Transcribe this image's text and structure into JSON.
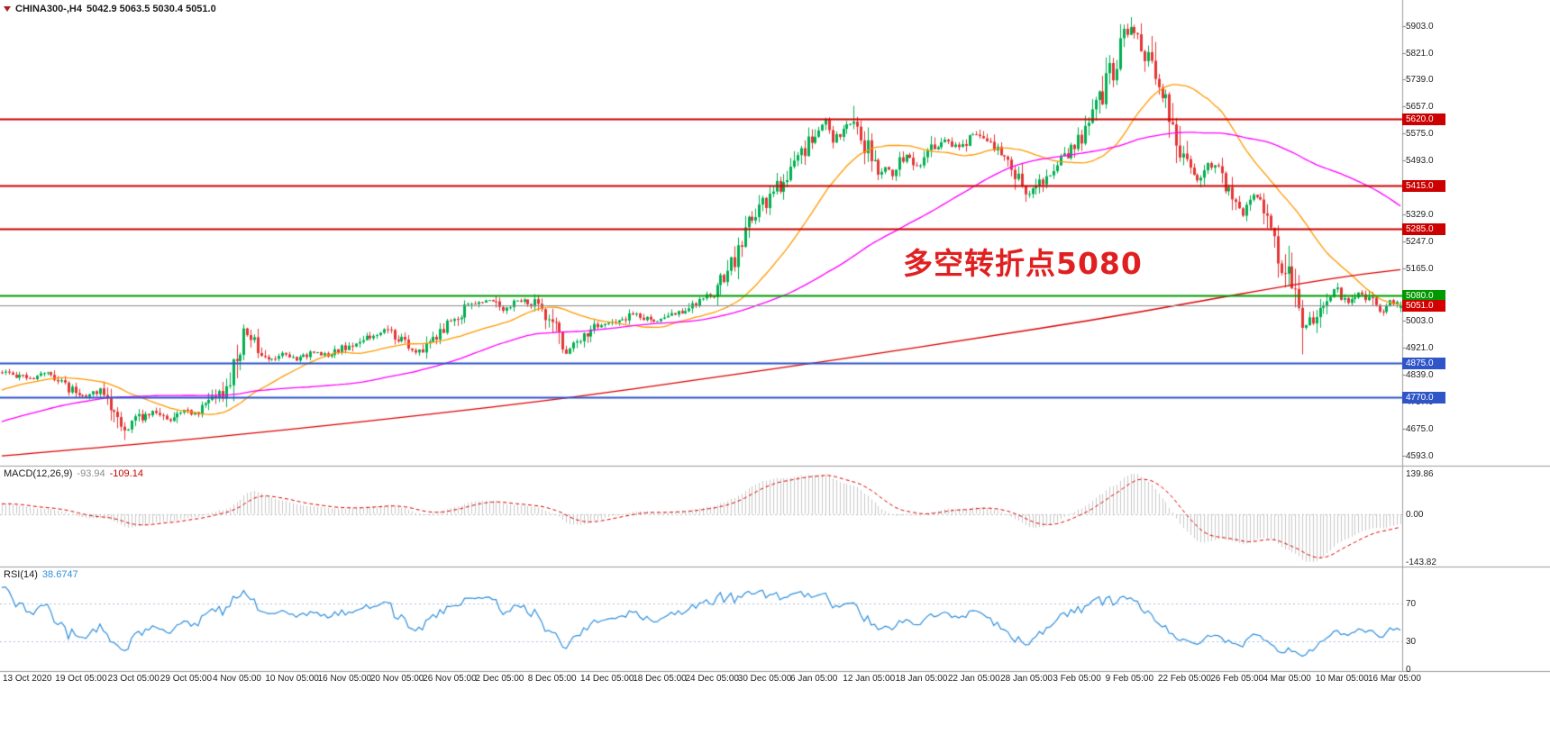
{
  "window": {
    "background": "#ffffff"
  },
  "chart_data": {
    "type": "candlestick",
    "symbol": "CHINA300-",
    "timeframe": "H4",
    "title": {
      "symbol_period": "CHINA300-,H4",
      "ohlc_text": "5042.9 5063.5 5030.4 5051.0"
    },
    "last_bar": {
      "open": 5042.9,
      "high": 5063.5,
      "low": 5030.4,
      "close": 5051.0
    },
    "price_axis": {
      "top_price": 5960,
      "bottom_price": 4565,
      "ticks": [
        "5903.0",
        "5821.0",
        "5739.0",
        "5657.0",
        "5575.0",
        "5493.0",
        "5411.0",
        "5329.0",
        "5247.0",
        "5165.0",
        "5083.0",
        "5003.0",
        "4921.0",
        "4839.0",
        "4757.0",
        "4675.0",
        "4593.0"
      ]
    },
    "levels": [
      {
        "value": 5620.0,
        "label": "5620.0",
        "color": "#cc0000",
        "type": "resistance"
      },
      {
        "value": 5415.0,
        "label": "5415.0",
        "color": "#cc0000",
        "type": "resistance"
      },
      {
        "value": 5285.0,
        "label": "5285.0",
        "color": "#cc0000",
        "type": "resistance"
      },
      {
        "value": 5080.0,
        "label": "5080.0",
        "color": "#009a00",
        "type": "pivot"
      },
      {
        "value": 4875.0,
        "label": "4875.0",
        "color": "#2f55c8",
        "type": "support"
      },
      {
        "value": 4770.0,
        "label": "4770.0",
        "color": "#2f55c8",
        "type": "support"
      }
    ],
    "current_price": {
      "value": 5051.0,
      "label": "5051.0",
      "badge_color": "#d40000",
      "line_color": "#8a8a8a"
    },
    "annotation": {
      "text": "多空转折点5080",
      "color": "#e02020"
    },
    "time_axis_labels": [
      "13 Oct 2020",
      "19 Oct 05:00",
      "23 Oct 05:00",
      "29 Oct 05:00",
      "4 Nov 05:00",
      "10 Nov 05:00",
      "16 Nov 05:00",
      "20 Nov 05:00",
      "26 Nov 05:00",
      "2 Dec 05:00",
      "8 Dec 05:00",
      "14 Dec 05:00",
      "18 Dec 05:00",
      "24 Dec 05:00",
      "30 Dec 05:00",
      "6 Jan 05:00",
      "12 Jan 05:00",
      "18 Jan 05:00",
      "22 Jan 05:00",
      "28 Jan 05:00",
      "3 Feb 05:00",
      "9 Feb 05:00",
      "22 Feb 05:00",
      "26 Feb 05:00",
      "4 Mar 05:00",
      "10 Mar 05:00",
      "16 Mar 05:00"
    ],
    "candles": {
      "count": 400,
      "history_bars": 220,
      "seed": 20210316,
      "up_color": "#00b050",
      "down_color": "#e53535"
    },
    "price_keyframes": [
      [
        -220,
        4390
      ],
      [
        -170,
        4440
      ],
      [
        -120,
        4515
      ],
      [
        -80,
        4585
      ],
      [
        -50,
        4655
      ],
      [
        -25,
        4755
      ],
      [
        -8,
        4815
      ],
      [
        0,
        4848
      ],
      [
        8,
        4825
      ],
      [
        14,
        4845
      ],
      [
        19,
        4800
      ],
      [
        24,
        4775
      ],
      [
        28,
        4790
      ],
      [
        32,
        4730
      ],
      [
        35,
        4660
      ],
      [
        39,
        4705
      ],
      [
        43,
        4725
      ],
      [
        48,
        4695
      ],
      [
        51,
        4735
      ],
      [
        55,
        4720
      ],
      [
        60,
        4768
      ],
      [
        64,
        4800
      ],
      [
        67,
        4900
      ],
      [
        69,
        4975
      ],
      [
        72,
        4940
      ],
      [
        76,
        4880
      ],
      [
        80,
        4900
      ],
      [
        84,
        4885
      ],
      [
        89,
        4905
      ],
      [
        94,
        4900
      ],
      [
        99,
        4930
      ],
      [
        104,
        4955
      ],
      [
        109,
        4975
      ],
      [
        114,
        4940
      ],
      [
        118,
        4905
      ],
      [
        121,
        4935
      ],
      [
        125,
        4975
      ],
      [
        130,
        5015
      ],
      [
        134,
        5055
      ],
      [
        139,
        5075
      ],
      [
        143,
        5040
      ],
      [
        147,
        5065
      ],
      [
        152,
        5055
      ],
      [
        156,
        5010
      ],
      [
        159,
        4955
      ],
      [
        161,
        4915
      ],
      [
        165,
        4950
      ],
      [
        169,
        4985
      ],
      [
        173,
        4995
      ],
      [
        177,
        5010
      ],
      [
        181,
        5025
      ],
      [
        186,
        5005
      ],
      [
        190,
        5020
      ],
      [
        194,
        5035
      ],
      [
        198,
        5060
      ],
      [
        203,
        5085
      ],
      [
        206,
        5130
      ],
      [
        210,
        5210
      ],
      [
        213,
        5290
      ],
      [
        216,
        5345
      ],
      [
        220,
        5395
      ],
      [
        224,
        5450
      ],
      [
        228,
        5505
      ],
      [
        232,
        5570
      ],
      [
        235,
        5605
      ],
      [
        237,
        5555
      ],
      [
        240,
        5590
      ],
      [
        243,
        5615
      ],
      [
        246,
        5545
      ],
      [
        250,
        5470
      ],
      [
        254,
        5455
      ],
      [
        258,
        5510
      ],
      [
        262,
        5470
      ],
      [
        265,
        5520
      ],
      [
        269,
        5555
      ],
      [
        273,
        5535
      ],
      [
        277,
        5575
      ],
      [
        281,
        5550
      ],
      [
        285,
        5510
      ],
      [
        288,
        5470
      ],
      [
        293,
        5385
      ],
      [
        296,
        5420
      ],
      [
        300,
        5470
      ],
      [
        304,
        5515
      ],
      [
        308,
        5565
      ],
      [
        312,
        5645
      ],
      [
        316,
        5745
      ],
      [
        319,
        5845
      ],
      [
        322,
        5895
      ],
      [
        324,
        5850
      ],
      [
        327,
        5805
      ],
      [
        330,
        5705
      ],
      [
        334,
        5605
      ],
      [
        337,
        5490
      ],
      [
        341,
        5430
      ],
      [
        344,
        5485
      ],
      [
        348,
        5445
      ],
      [
        351,
        5380
      ],
      [
        354,
        5330
      ],
      [
        357,
        5385
      ],
      [
        360,
        5345
      ],
      [
        363,
        5255
      ],
      [
        366,
        5160
      ],
      [
        369,
        5045
      ],
      [
        371,
        4970
      ],
      [
        374,
        5015
      ],
      [
        377,
        5065
      ],
      [
        380,
        5105
      ],
      [
        384,
        5060
      ],
      [
        387,
        5090
      ],
      [
        390,
        5070
      ],
      [
        393,
        5030
      ],
      [
        396,
        5062
      ],
      [
        399,
        5051
      ]
    ],
    "wick_extensions": [
      {
        "bar": 35,
        "low_extra": 25
      },
      {
        "bar": 243,
        "high_extra": 40
      },
      {
        "bar": 322,
        "high_extra": 28
      },
      {
        "bar": 371,
        "low_extra": 60
      }
    ],
    "moving_averages": {
      "fast_period": 30,
      "fast_color": "#ff9900",
      "medium_period": 85,
      "medium_color": "#ff00ff",
      "slow_color": "#dd0000",
      "slow_keyframes": [
        [
          0,
          4592
        ],
        [
          40,
          4628
        ],
        [
          80,
          4670
        ],
        [
          120,
          4716
        ],
        [
          160,
          4766
        ],
        [
          200,
          4826
        ],
        [
          240,
          4888
        ],
        [
          280,
          4954
        ],
        [
          310,
          5004
        ],
        [
          340,
          5060
        ],
        [
          365,
          5108
        ],
        [
          385,
          5142
        ],
        [
          399,
          5160
        ]
      ]
    },
    "macd": {
      "name": "MACD(12,26,9)",
      "main_value": "-93.94",
      "signal_value": "-109.14",
      "fast": 12,
      "slow": 26,
      "signal": 9,
      "axis_ticks": [
        "139.86",
        "0.00",
        "-143.82"
      ],
      "histogram_color": "#c9c9c9",
      "signal_color": "#dd0000"
    },
    "rsi": {
      "name": "RSI(14)",
      "period": 14,
      "value": "38.6747",
      "line_color": "#2f8fdd",
      "levels": [
        70,
        30
      ],
      "axis_ticks": [
        "70",
        "30",
        "0"
      ],
      "level_color": "#b4bedd"
    }
  }
}
